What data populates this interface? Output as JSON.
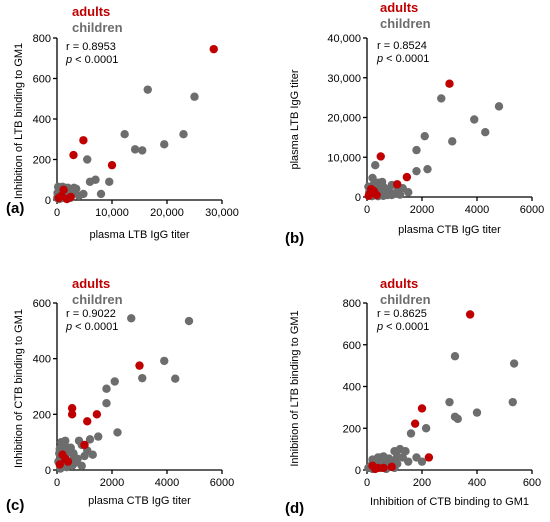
{
  "colors": {
    "adults": "#c00000",
    "children": "#6d6d6d",
    "axis": "#000000"
  },
  "chart_data": [
    {
      "type": "scatter",
      "panel_label": "(a)",
      "xlabel": "plasma LTB IgG titer",
      "ylabel": "Inhibition of LTB binding to GM1",
      "xlim": [
        0,
        30000
      ],
      "ylim": [
        0,
        800
      ],
      "xticks": [
        0,
        10000,
        20000,
        30000
      ],
      "xtick_labels": [
        "0",
        "10,000",
        "20,000",
        "30,000"
      ],
      "yticks": [
        0,
        200,
        400,
        600,
        800
      ],
      "ytick_labels": [
        "0",
        "200",
        "400",
        "600",
        "800"
      ],
      "legend": [
        "adults",
        "children"
      ],
      "stat_r": "r = 0.8953",
      "stat_p_symbol": "p",
      "stat_p_rest": " < 0.0001",
      "series": [
        {
          "name": "adults",
          "color": "#c00000",
          "points": [
            [
              28500,
              745
            ],
            [
              4800,
              295
            ],
            [
              10000,
              172
            ],
            [
              3000,
              222
            ],
            [
              1200,
              50
            ],
            [
              800,
              20
            ],
            [
              2500,
              15
            ],
            [
              1800,
              5
            ],
            [
              300,
              10
            ]
          ]
        },
        {
          "name": "children",
          "color": "#6d6d6d",
          "points": [
            [
              16500,
              545
            ],
            [
              25000,
              510
            ],
            [
              12300,
              325
            ],
            [
              14200,
              250
            ],
            [
              15500,
              245
            ],
            [
              23000,
              325
            ],
            [
              19500,
              275
            ],
            [
              9500,
              90
            ],
            [
              7000,
              100
            ],
            [
              6000,
              90
            ],
            [
              5500,
              200
            ],
            [
              4800,
              30
            ],
            [
              3500,
              55
            ],
            [
              2800,
              35
            ],
            [
              200,
              65
            ],
            [
              500,
              55
            ],
            [
              800,
              45
            ],
            [
              1000,
              65
            ],
            [
              1300,
              50
            ],
            [
              1600,
              35
            ],
            [
              2000,
              60
            ],
            [
              2200,
              20
            ],
            [
              2600,
              45
            ],
            [
              150,
              20
            ],
            [
              400,
              5
            ],
            [
              600,
              30
            ],
            [
              900,
              15
            ],
            [
              1100,
              25
            ],
            [
              1400,
              10
            ],
            [
              1700,
              15
            ],
            [
              300,
              40
            ],
            [
              700,
              8
            ],
            [
              1900,
              40
            ],
            [
              2400,
              10
            ],
            [
              3100,
              60
            ],
            [
              4000,
              20
            ],
            [
              8000,
              30
            ],
            [
              50,
              10
            ],
            [
              100,
              35
            ],
            [
              1500,
              60
            ]
          ]
        }
      ]
    },
    {
      "type": "scatter",
      "panel_label": "(b)",
      "xlabel": "plasma CTB IgG titer",
      "ylabel": "plasma LTB IgG titer",
      "xlim": [
        0,
        6000
      ],
      "ylim": [
        0,
        40000
      ],
      "xticks": [
        0,
        2000,
        4000,
        6000
      ],
      "xtick_labels": [
        "0",
        "2000",
        "4000",
        "6000"
      ],
      "yticks": [
        0,
        10000,
        20000,
        30000,
        40000
      ],
      "ytick_labels": [
        "0",
        "10,000",
        "20,000",
        "30,000",
        "40,000"
      ],
      "legend": [
        "adults",
        "children"
      ],
      "stat_r": "r = 0.8524",
      "stat_p_symbol": "p",
      "stat_p_rest": " < 0.0001",
      "series": [
        {
          "name": "adults",
          "color": "#c00000",
          "points": [
            [
              3000,
              28500
            ],
            [
              500,
              10200
            ],
            [
              1100,
              3200
            ],
            [
              1450,
              5000
            ],
            [
              150,
              2000
            ],
            [
              250,
              1500
            ],
            [
              100,
              800
            ],
            [
              350,
              500
            ],
            [
              60,
              300
            ]
          ]
        },
        {
          "name": "children",
          "color": "#6d6d6d",
          "points": [
            [
              2700,
              24800
            ],
            [
              4800,
              22800
            ],
            [
              4300,
              16300
            ],
            [
              3900,
              19500
            ],
            [
              3100,
              14000
            ],
            [
              2100,
              15300
            ],
            [
              1800,
              11800
            ],
            [
              1800,
              6500
            ],
            [
              2200,
              7000
            ],
            [
              1500,
              1200
            ],
            [
              300,
              8000
            ],
            [
              200,
              4800
            ],
            [
              400,
              3600
            ],
            [
              600,
              2500
            ],
            [
              800,
              1500
            ],
            [
              900,
              3000
            ],
            [
              1000,
              800
            ],
            [
              100,
              1800
            ],
            [
              200,
              1000
            ],
            [
              300,
              2500
            ],
            [
              400,
              200
            ],
            [
              500,
              1200
            ],
            [
              600,
              300
            ],
            [
              700,
              2000
            ],
            [
              900,
              500
            ],
            [
              1200,
              600
            ],
            [
              150,
              600
            ],
            [
              250,
              3200
            ],
            [
              350,
              1800
            ],
            [
              450,
              800
            ],
            [
              550,
              3800
            ],
            [
              650,
              1000
            ],
            [
              750,
              500
            ],
            [
              50,
              2600
            ],
            [
              80,
              1200
            ],
            [
              120,
              400
            ],
            [
              1100,
              1500
            ],
            [
              1300,
              2200
            ],
            [
              180,
              200
            ],
            [
              280,
              1000
            ]
          ]
        }
      ]
    },
    {
      "type": "scatter",
      "panel_label": "(c)",
      "xlabel": "plasma CTB IgG titer",
      "ylabel": "Inhibition of  CTB binding to GM1",
      "xlim": [
        0,
        6000
      ],
      "ylim": [
        0,
        600
      ],
      "xticks": [
        0,
        2000,
        4000,
        6000
      ],
      "xtick_labels": [
        "0",
        "2000",
        "4000",
        "6000"
      ],
      "yticks": [
        0,
        200,
        400,
        600
      ],
      "ytick_labels": [
        "0",
        "200",
        "400",
        "600"
      ],
      "legend": [
        "adults",
        "children"
      ],
      "stat_r": "r = 0.9022",
      "stat_p_symbol": "p",
      "stat_p_rest": " < 0.0001",
      "series": [
        {
          "name": "adults",
          "color": "#c00000",
          "points": [
            [
              3000,
              375
            ],
            [
              550,
              222
            ],
            [
              550,
              200
            ],
            [
              1100,
              175
            ],
            [
              1450,
              200
            ],
            [
              1000,
              90
            ],
            [
              200,
              55
            ],
            [
              300,
              40
            ],
            [
              100,
              20
            ],
            [
              400,
              30
            ]
          ]
        },
        {
          "name": "children",
          "color": "#6d6d6d",
          "points": [
            [
              2700,
              545
            ],
            [
              4800,
              535
            ],
            [
              3900,
              392
            ],
            [
              4300,
              328
            ],
            [
              3100,
              330
            ],
            [
              2100,
              318
            ],
            [
              1800,
              292
            ],
            [
              1800,
              240
            ],
            [
              2200,
              135
            ],
            [
              1500,
              120
            ],
            [
              300,
              105
            ],
            [
              200,
              80
            ],
            [
              400,
              70
            ],
            [
              600,
              60
            ],
            [
              800,
              105
            ],
            [
              900,
              90
            ],
            [
              1000,
              50
            ],
            [
              100,
              75
            ],
            [
              200,
              40
            ],
            [
              300,
              55
            ],
            [
              400,
              20
            ],
            [
              500,
              80
            ],
            [
              600,
              45
            ],
            [
              700,
              35
            ],
            [
              900,
              15
            ],
            [
              1200,
              110
            ],
            [
              150,
              100
            ],
            [
              250,
              30
            ],
            [
              350,
              10
            ],
            [
              450,
              65
            ],
            [
              550,
              15
            ],
            [
              650,
              25
            ],
            [
              750,
              40
            ],
            [
              50,
              30
            ],
            [
              80,
              60
            ],
            [
              120,
              5
            ],
            [
              1100,
              70
            ],
            [
              1300,
              55
            ],
            [
              180,
              50
            ],
            [
              280,
              90
            ]
          ]
        }
      ]
    },
    {
      "type": "scatter",
      "panel_label": "(d)",
      "xlabel": "Inhibition of CTB binding to GM1",
      "ylabel": "Inhibition of LTB binding to GM1",
      "xlim": [
        0,
        600
      ],
      "ylim": [
        0,
        800
      ],
      "xticks": [
        0,
        200,
        400,
        600
      ],
      "xtick_labels": [
        "0",
        "200",
        "400",
        "600"
      ],
      "yticks": [
        0,
        200,
        400,
        600,
        800
      ],
      "ytick_labels": [
        "0",
        "200",
        "400",
        "600",
        "800"
      ],
      "legend": [
        "adults",
        "children"
      ],
      "stat_r": "r = 0.8625",
      "stat_p_symbol": "p",
      "stat_p_rest": " < 0.0001",
      "series": [
        {
          "name": "adults",
          "color": "#c00000",
          "points": [
            [
              375,
              745
            ],
            [
              200,
              295
            ],
            [
              175,
              222
            ],
            [
              225,
              60
            ],
            [
              90,
              15
            ],
            [
              20,
              20
            ],
            [
              40,
              10
            ],
            [
              30,
              5
            ],
            [
              60,
              10
            ]
          ]
        },
        {
          "name": "children",
          "color": "#6d6d6d",
          "points": [
            [
              320,
              545
            ],
            [
              535,
              510
            ],
            [
              400,
              275
            ],
            [
              320,
              255
            ],
            [
              330,
              245
            ],
            [
              530,
              325
            ],
            [
              300,
              325
            ],
            [
              215,
              200
            ],
            [
              120,
              100
            ],
            [
              100,
              90
            ],
            [
              140,
              90
            ],
            [
              160,
              175
            ],
            [
              110,
              30
            ],
            [
              80,
              55
            ],
            [
              60,
              65
            ],
            [
              80,
              35
            ],
            [
              100,
              45
            ],
            [
              50,
              60
            ],
            [
              130,
              60
            ],
            [
              20,
              35
            ],
            [
              40,
              45
            ],
            [
              60,
              30
            ],
            [
              80,
              20
            ],
            [
              10,
              15
            ],
            [
              30,
              25
            ],
            [
              50,
              10
            ],
            [
              70,
              5
            ],
            [
              90,
              15
            ],
            [
              20,
              5
            ],
            [
              40,
              60
            ],
            [
              100,
              10
            ],
            [
              20,
              50
            ],
            [
              60,
              50
            ],
            [
              150,
              40
            ],
            [
              180,
              60
            ],
            [
              200,
              40
            ],
            [
              30,
              40
            ],
            [
              5,
              10
            ],
            [
              45,
              15
            ],
            [
              110,
              65
            ]
          ]
        }
      ]
    }
  ]
}
